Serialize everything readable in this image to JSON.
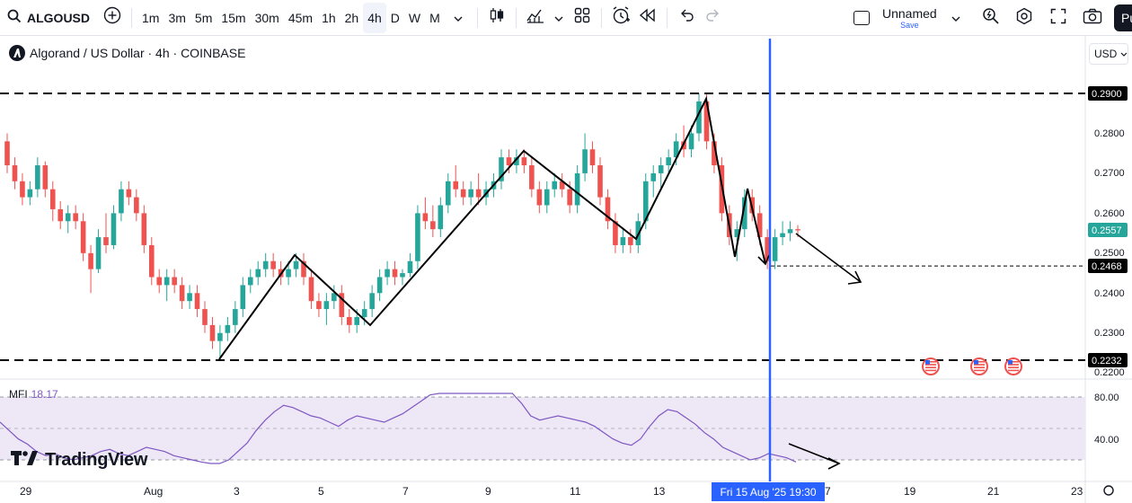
{
  "toolbar": {
    "symbol": "ALGOUSD",
    "intervals": [
      "1m",
      "3m",
      "5m",
      "15m",
      "30m",
      "45m",
      "1h",
      "2h",
      "4h",
      "D",
      "W",
      "M"
    ],
    "active_interval": "4h",
    "layout_name": "Unnamed",
    "layout_save": "Save",
    "publish_label": "Pu",
    "icons": [
      "search-icon",
      "add-symbol-icon",
      "chevron-down-icon",
      "candles-icon",
      "indicators-icon",
      "templates-icon",
      "alert-icon",
      "replay-icon",
      "undo-icon",
      "redo-icon",
      "quick-search-icon",
      "settings-icon",
      "fullscreen-icon",
      "camera-icon"
    ]
  },
  "legend": {
    "title": "Algorand / US Dollar · 4h · COINBASE"
  },
  "currency": "USD",
  "price_axis": {
    "ticks": [
      "0.2800",
      "0.2700",
      "0.2600",
      "0.2500",
      "0.2400",
      "0.2300",
      "0.2200"
    ],
    "label_top": "0.2900",
    "label_current": "0.2557",
    "label_support": "0.2468",
    "label_bottom": "0.2232"
  },
  "mfi": {
    "name": "MFI",
    "value": "18.17",
    "ticks": [
      "80.00",
      "40.00"
    ]
  },
  "time_axis": {
    "ticks": [
      "29",
      "Aug",
      "3",
      "5",
      "7",
      "9",
      "11",
      "13",
      "7",
      "19",
      "21",
      "23"
    ],
    "crosshair": "Fri 15 Aug '25   19:30"
  },
  "brand": "TradingView",
  "colors": {
    "up": "#26a69a",
    "down": "#ef5350",
    "crosshair": "#2962ff",
    "mfi_line": "#7e57c2",
    "mfi_band": "#ede7f6"
  },
  "chart_data": {
    "type": "candlestick",
    "ylim": [
      0.218,
      0.296
    ],
    "candles": [
      [
        0.278,
        0.28,
        0.27,
        0.272
      ],
      [
        0.272,
        0.274,
        0.266,
        0.268
      ],
      [
        0.268,
        0.27,
        0.262,
        0.264
      ],
      [
        0.264,
        0.268,
        0.262,
        0.266
      ],
      [
        0.266,
        0.274,
        0.264,
        0.272
      ],
      [
        0.272,
        0.273,
        0.264,
        0.266
      ],
      [
        0.266,
        0.268,
        0.258,
        0.261
      ],
      [
        0.261,
        0.263,
        0.256,
        0.258
      ],
      [
        0.258,
        0.262,
        0.255,
        0.26
      ],
      [
        0.26,
        0.262,
        0.256,
        0.258
      ],
      [
        0.258,
        0.26,
        0.248,
        0.25
      ],
      [
        0.25,
        0.252,
        0.24,
        0.246
      ],
      [
        0.246,
        0.256,
        0.245,
        0.254
      ],
      [
        0.254,
        0.26,
        0.25,
        0.252
      ],
      [
        0.252,
        0.262,
        0.251,
        0.26
      ],
      [
        0.26,
        0.268,
        0.258,
        0.266
      ],
      [
        0.266,
        0.268,
        0.262,
        0.264
      ],
      [
        0.264,
        0.266,
        0.258,
        0.26
      ],
      [
        0.26,
        0.262,
        0.25,
        0.252
      ],
      [
        0.252,
        0.254,
        0.242,
        0.244
      ],
      [
        0.244,
        0.246,
        0.24,
        0.242
      ],
      [
        0.242,
        0.246,
        0.238,
        0.244
      ],
      [
        0.244,
        0.246,
        0.24,
        0.242
      ],
      [
        0.242,
        0.244,
        0.236,
        0.238
      ],
      [
        0.238,
        0.242,
        0.236,
        0.24
      ],
      [
        0.24,
        0.242,
        0.234,
        0.236
      ],
      [
        0.236,
        0.238,
        0.23,
        0.232
      ],
      [
        0.232,
        0.234,
        0.226,
        0.228
      ],
      [
        0.228,
        0.232,
        0.223,
        0.23
      ],
      [
        0.23,
        0.234,
        0.228,
        0.232
      ],
      [
        0.232,
        0.238,
        0.23,
        0.236
      ],
      [
        0.236,
        0.244,
        0.234,
        0.242
      ],
      [
        0.242,
        0.246,
        0.24,
        0.244
      ],
      [
        0.244,
        0.248,
        0.242,
        0.246
      ],
      [
        0.246,
        0.25,
        0.244,
        0.248
      ],
      [
        0.248,
        0.25,
        0.244,
        0.246
      ],
      [
        0.246,
        0.248,
        0.242,
        0.244
      ],
      [
        0.244,
        0.248,
        0.242,
        0.246
      ],
      [
        0.246,
        0.25,
        0.244,
        0.248
      ],
      [
        0.248,
        0.25,
        0.242,
        0.244
      ],
      [
        0.244,
        0.246,
        0.236,
        0.238
      ],
      [
        0.238,
        0.24,
        0.234,
        0.236
      ],
      [
        0.236,
        0.24,
        0.232,
        0.238
      ],
      [
        0.238,
        0.242,
        0.236,
        0.24
      ],
      [
        0.24,
        0.242,
        0.232,
        0.234
      ],
      [
        0.234,
        0.236,
        0.23,
        0.232
      ],
      [
        0.232,
        0.236,
        0.23,
        0.234
      ],
      [
        0.234,
        0.238,
        0.232,
        0.236
      ],
      [
        0.236,
        0.242,
        0.234,
        0.24
      ],
      [
        0.24,
        0.246,
        0.238,
        0.244
      ],
      [
        0.244,
        0.248,
        0.242,
        0.246
      ],
      [
        0.246,
        0.248,
        0.242,
        0.244
      ],
      [
        0.244,
        0.246,
        0.242,
        0.245
      ],
      [
        0.245,
        0.25,
        0.244,
        0.248
      ],
      [
        0.248,
        0.262,
        0.246,
        0.26
      ],
      [
        0.26,
        0.264,
        0.256,
        0.258
      ],
      [
        0.258,
        0.262,
        0.254,
        0.256
      ],
      [
        0.256,
        0.264,
        0.254,
        0.262
      ],
      [
        0.262,
        0.27,
        0.26,
        0.268
      ],
      [
        0.268,
        0.272,
        0.264,
        0.266
      ],
      [
        0.266,
        0.268,
        0.262,
        0.264
      ],
      [
        0.264,
        0.268,
        0.262,
        0.266
      ],
      [
        0.266,
        0.27,
        0.262,
        0.264
      ],
      [
        0.264,
        0.268,
        0.262,
        0.266
      ],
      [
        0.266,
        0.27,
        0.264,
        0.268
      ],
      [
        0.268,
        0.276,
        0.266,
        0.274
      ],
      [
        0.274,
        0.276,
        0.27,
        0.272
      ],
      [
        0.272,
        0.276,
        0.27,
        0.274
      ],
      [
        0.274,
        0.276,
        0.27,
        0.272
      ],
      [
        0.272,
        0.274,
        0.264,
        0.266
      ],
      [
        0.266,
        0.268,
        0.26,
        0.262
      ],
      [
        0.262,
        0.268,
        0.26,
        0.266
      ],
      [
        0.266,
        0.27,
        0.264,
        0.268
      ],
      [
        0.268,
        0.27,
        0.264,
        0.266
      ],
      [
        0.266,
        0.268,
        0.26,
        0.262
      ],
      [
        0.262,
        0.272,
        0.26,
        0.27
      ],
      [
        0.27,
        0.28,
        0.268,
        0.276
      ],
      [
        0.276,
        0.278,
        0.27,
        0.272
      ],
      [
        0.272,
        0.274,
        0.262,
        0.264
      ],
      [
        0.264,
        0.266,
        0.256,
        0.258
      ],
      [
        0.258,
        0.26,
        0.25,
        0.252
      ],
      [
        0.252,
        0.256,
        0.25,
        0.254
      ],
      [
        0.254,
        0.256,
        0.25,
        0.252
      ],
      [
        0.252,
        0.26,
        0.25,
        0.258
      ],
      [
        0.258,
        0.27,
        0.256,
        0.268
      ],
      [
        0.268,
        0.272,
        0.264,
        0.27
      ],
      [
        0.27,
        0.274,
        0.266,
        0.272
      ],
      [
        0.272,
        0.276,
        0.27,
        0.274
      ],
      [
        0.274,
        0.28,
        0.272,
        0.278
      ],
      [
        0.278,
        0.282,
        0.274,
        0.276
      ],
      [
        0.276,
        0.282,
        0.274,
        0.28
      ],
      [
        0.28,
        0.29,
        0.278,
        0.288
      ],
      [
        0.288,
        0.29,
        0.276,
        0.278
      ],
      [
        0.278,
        0.28,
        0.27,
        0.272
      ],
      [
        0.272,
        0.274,
        0.258,
        0.26
      ],
      [
        0.26,
        0.262,
        0.252,
        0.254
      ],
      [
        0.254,
        0.258,
        0.248,
        0.256
      ],
      [
        0.256,
        0.266,
        0.254,
        0.264
      ],
      [
        0.264,
        0.266,
        0.258,
        0.26
      ],
      [
        0.26,
        0.262,
        0.252,
        0.254
      ],
      [
        0.254,
        0.256,
        0.246,
        0.248
      ],
      [
        0.248,
        0.256,
        0.246,
        0.254
      ],
      [
        0.254,
        0.258,
        0.252,
        0.255
      ],
      [
        0.255,
        0.258,
        0.253,
        0.256
      ],
      [
        0.256,
        0.257,
        0.254,
        0.2557
      ]
    ],
    "support_levels": [
      0.29,
      0.2468,
      0.2232
    ],
    "mfi_values": [
      56,
      48,
      40,
      35,
      28,
      24,
      26,
      22,
      20,
      22,
      24,
      28,
      30,
      26,
      24,
      28,
      32,
      30,
      28,
      24,
      22,
      20,
      18,
      16,
      14,
      20,
      28,
      36,
      48,
      58,
      66,
      72,
      70,
      66,
      62,
      60,
      56,
      52,
      58,
      62,
      60,
      58,
      56,
      60,
      64,
      70,
      76,
      82,
      90,
      92,
      88,
      86,
      84,
      88,
      90,
      88,
      86,
      74,
      62,
      58,
      60,
      62,
      60,
      58,
      56,
      52,
      46,
      40,
      36,
      34,
      40,
      52,
      62,
      68,
      66,
      60,
      54,
      46,
      40,
      32,
      28,
      24,
      20,
      22,
      26,
      24,
      22,
      18
    ],
    "mfi_ylim": [
      10,
      100
    ]
  }
}
